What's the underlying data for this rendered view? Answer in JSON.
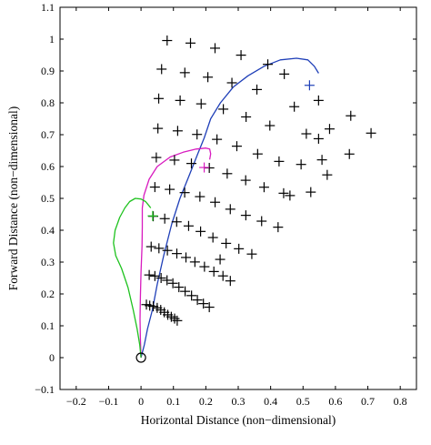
{
  "chart_data": {
    "type": "scatter",
    "title": "",
    "xlabel": "Horizontal Distance (non−dimensional)",
    "ylabel": "Forward Distance (non−dimensional)",
    "xlim": [
      -0.25,
      0.85
    ],
    "ylim": [
      -0.1,
      1.1
    ],
    "x_ticks": [
      "−0.2",
      "−0.1",
      "0",
      "0.1",
      "0.2",
      "0.3",
      "0.4",
      "0.5",
      "0.6",
      "0.7",
      "0.8"
    ],
    "x_tick_values": [
      -0.2,
      -0.1,
      0,
      0.1,
      0.2,
      0.3,
      0.4,
      0.5,
      0.6,
      0.7,
      0.8
    ],
    "y_ticks": [
      "−0.1",
      "0",
      "0.1",
      "0.2",
      "0.3",
      "0.4",
      "0.5",
      "0.6",
      "0.7",
      "0.8",
      "0.9",
      "1",
      "1.1"
    ],
    "y_tick_values": [
      -0.1,
      0,
      0.1,
      0.2,
      0.3,
      0.4,
      0.5,
      0.6,
      0.7,
      0.8,
      0.9,
      1.0,
      1.1
    ],
    "grid": false,
    "legend": "none",
    "origin_marker": {
      "x": 0,
      "y": 0,
      "shape": "circle"
    },
    "target_grid": {
      "marker": "+",
      "color": "#000000",
      "points": [
        [
          0.0806,
          0.9956
        ],
        [
          0.1527,
          0.9876
        ],
        [
          0.2284,
          0.9716
        ],
        [
          0.3086,
          0.9497
        ],
        [
          0.3913,
          0.9209
        ],
        [
          0.0635,
          0.9058
        ],
        [
          0.1352,
          0.8947
        ],
        [
          0.2063,
          0.8806
        ],
        [
          0.2805,
          0.8629
        ],
        [
          0.3576,
          0.8417
        ],
        [
          0.4421,
          0.8903
        ],
        [
          0.0546,
          0.8135
        ],
        [
          0.1207,
          0.8075
        ],
        [
          0.1856,
          0.7968
        ],
        [
          0.254,
          0.7802
        ],
        [
          0.3242,
          0.7558
        ],
        [
          0.3976,
          0.7285
        ],
        [
          0.473,
          0.7879
        ],
        [
          0.5479,
          0.8075
        ],
        [
          0.0521,
          0.7197
        ],
        [
          0.1131,
          0.712
        ],
        [
          0.1729,
          0.7008
        ],
        [
          0.2344,
          0.6853
        ],
        [
          0.2957,
          0.6639
        ],
        [
          0.3599,
          0.6395
        ],
        [
          0.426,
          0.6161
        ],
        [
          0.5102,
          0.7028
        ],
        [
          0.5819,
          0.718
        ],
        [
          0.6473,
          0.7593
        ],
        [
          0.7099,
          0.7049
        ],
        [
          0.0472,
          0.6284
        ],
        [
          0.1033,
          0.6202
        ],
        [
          0.1555,
          0.6096
        ],
        [
          0.2107,
          0.5957
        ],
        [
          0.266,
          0.5777
        ],
        [
          0.323,
          0.5569
        ],
        [
          0.3798,
          0.5351
        ],
        [
          0.4401,
          0.5162
        ],
        [
          0.494,
          0.6066
        ],
        [
          0.5584,
          0.621
        ],
        [
          0.5746,
          0.5738
        ],
        [
          0.643,
          0.6392
        ],
        [
          0.548,
          0.6873
        ],
        [
          0.0428,
          0.5355
        ],
        [
          0.0885,
          0.5283
        ],
        [
          0.1347,
          0.5181
        ],
        [
          0.1817,
          0.5055
        ],
        [
          0.2286,
          0.4879
        ],
        [
          0.2755,
          0.4661
        ],
        [
          0.3235,
          0.4468
        ],
        [
          0.3722,
          0.4285
        ],
        [
          0.423,
          0.4096
        ],
        [
          0.4596,
          0.5089
        ],
        [
          0.5239,
          0.5197
        ],
        [
          0.0377,
          0.4438
        ],
        [
          0.0732,
          0.4364
        ],
        [
          0.11,
          0.4264
        ],
        [
          0.1469,
          0.4135
        ],
        [
          0.1838,
          0.3962
        ],
        [
          0.2219,
          0.3771
        ],
        [
          0.2626,
          0.3588
        ],
        [
          0.3019,
          0.3418
        ],
        [
          0.3419,
          0.3252
        ],
        [
          0.0313,
          0.3484
        ],
        [
          0.0553,
          0.3433
        ],
        [
          0.0814,
          0.3365
        ],
        [
          0.1105,
          0.3267
        ],
        [
          0.1387,
          0.3145
        ],
        [
          0.1663,
          0.3004
        ],
        [
          0.1958,
          0.2855
        ],
        [
          0.2248,
          0.2703
        ],
        [
          0.2529,
          0.2566
        ],
        [
          0.2756,
          0.2409
        ],
        [
          0.2441,
          0.3084
        ],
        [
          0.0253,
          0.2596
        ],
        [
          0.0428,
          0.2562
        ],
        [
          0.0619,
          0.25
        ],
        [
          0.0803,
          0.2429
        ],
        [
          0.0983,
          0.2335
        ],
        [
          0.1169,
          0.2212
        ],
        [
          0.1361,
          0.2081
        ],
        [
          0.1559,
          0.1948
        ],
        [
          0.174,
          0.1811
        ],
        [
          0.1925,
          0.1696
        ],
        [
          0.2107,
          0.1584
        ],
        [
          0.0166,
          0.1665
        ],
        [
          0.0269,
          0.1632
        ],
        [
          0.0378,
          0.1611
        ],
        [
          0.0499,
          0.1562
        ],
        [
          0.0608,
          0.1498
        ],
        [
          0.0718,
          0.1423
        ],
        [
          0.0826,
          0.1345
        ],
        [
          0.0934,
          0.1282
        ],
        [
          0.1036,
          0.1226
        ],
        [
          0.1117,
          0.1161
        ]
      ]
    },
    "target_points": [
      {
        "color": "#1f3fb8",
        "x": 0.52,
        "y": 0.855
      },
      {
        "color": "#d81bbf",
        "x": 0.195,
        "y": 0.597
      },
      {
        "color": "#1ec21e",
        "x": 0.036,
        "y": 0.445
      }
    ],
    "trajectories": [
      {
        "color": "#1f3fb8",
        "points": [
          [
            0,
            0
          ],
          [
            0.01,
            0.04
          ],
          [
            0.02,
            0.09
          ],
          [
            0.035,
            0.15
          ],
          [
            0.05,
            0.23
          ],
          [
            0.07,
            0.32
          ],
          [
            0.095,
            0.42
          ],
          [
            0.12,
            0.5
          ],
          [
            0.148,
            0.57
          ],
          [
            0.175,
            0.64
          ],
          [
            0.195,
            0.69
          ],
          [
            0.215,
            0.75
          ],
          [
            0.245,
            0.8
          ],
          [
            0.285,
            0.85
          ],
          [
            0.33,
            0.885
          ],
          [
            0.38,
            0.915
          ],
          [
            0.43,
            0.935
          ],
          [
            0.48,
            0.94
          ],
          [
            0.515,
            0.935
          ],
          [
            0.535,
            0.915
          ],
          [
            0.548,
            0.893
          ]
        ]
      },
      {
        "color": "#d81bbf",
        "points": [
          [
            0,
            0
          ],
          [
            -0.002,
            0.06
          ],
          [
            -0.003,
            0.12
          ],
          [
            -0.002,
            0.19
          ],
          [
            0,
            0.27
          ],
          [
            0.003,
            0.35
          ],
          [
            0.004,
            0.41
          ],
          [
            0.004,
            0.47
          ],
          [
            0.009,
            0.51
          ],
          [
            0.025,
            0.56
          ],
          [
            0.05,
            0.6
          ],
          [
            0.09,
            0.63
          ],
          [
            0.13,
            0.645
          ],
          [
            0.17,
            0.655
          ],
          [
            0.2,
            0.658
          ],
          [
            0.212,
            0.655
          ],
          [
            0.215,
            0.64
          ],
          [
            0.212,
            0.622
          ]
        ]
      },
      {
        "color": "#1ec21e",
        "points": [
          [
            0,
            0
          ],
          [
            -0.004,
            0.04
          ],
          [
            -0.012,
            0.09
          ],
          [
            -0.024,
            0.15
          ],
          [
            -0.04,
            0.22
          ],
          [
            -0.06,
            0.28
          ],
          [
            -0.078,
            0.32
          ],
          [
            -0.085,
            0.36
          ],
          [
            -0.08,
            0.4
          ],
          [
            -0.066,
            0.44
          ],
          [
            -0.05,
            0.47
          ],
          [
            -0.035,
            0.49
          ],
          [
            -0.018,
            0.5
          ],
          [
            0,
            0.498
          ],
          [
            0.014,
            0.49
          ],
          [
            0.024,
            0.478
          ],
          [
            0.03,
            0.47
          ]
        ]
      }
    ]
  }
}
